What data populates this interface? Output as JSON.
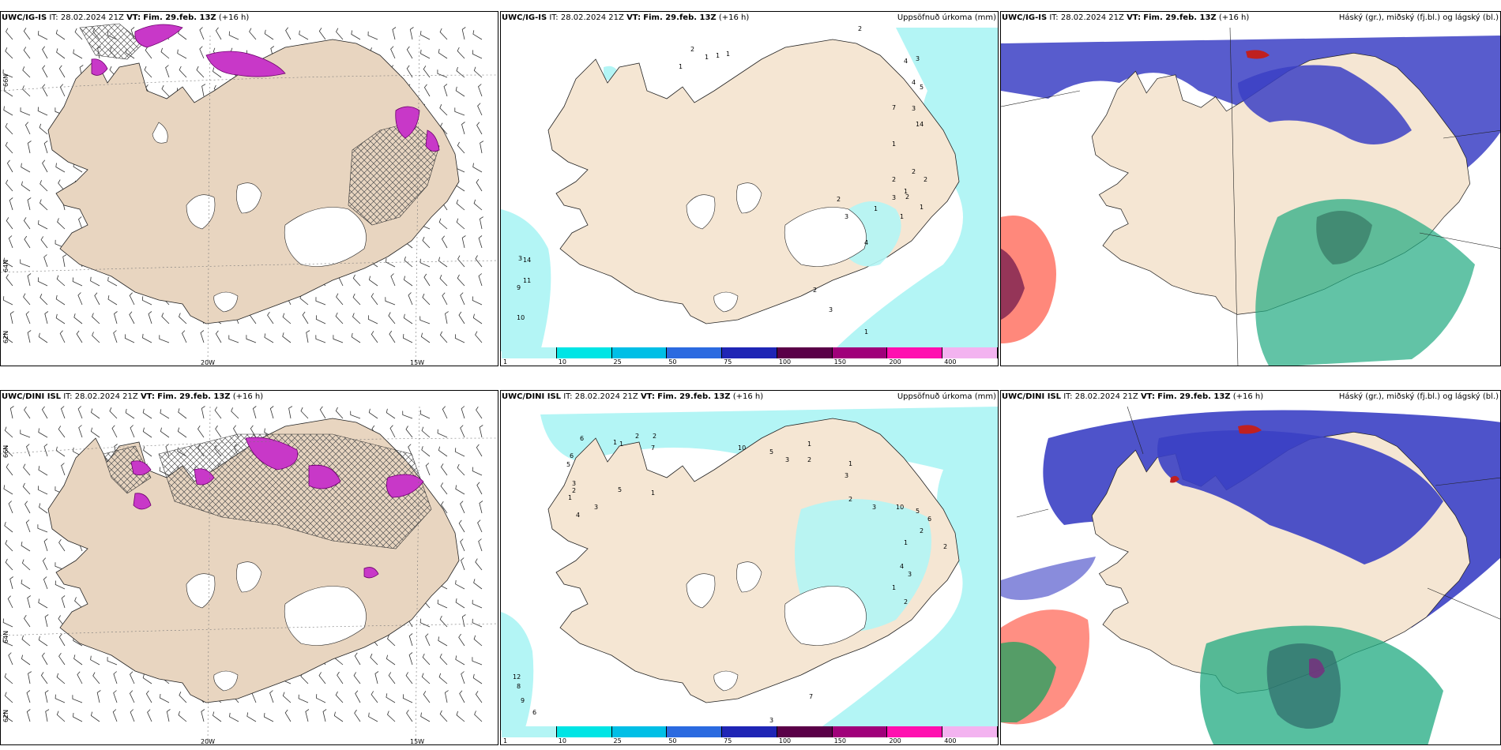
{
  "panels": [
    {
      "model": "UWC/IG-IS",
      "it_label": "IT:",
      "it": "28.02.2024 21Z",
      "vt_label": "VT:",
      "vt": "Fim. 29.feb. 13Z",
      "lead": "(+16 h)",
      "right": ""
    },
    {
      "model": "UWC/IG-IS",
      "it_label": "IT:",
      "it": "28.02.2024 21Z",
      "vt_label": "VT:",
      "vt": "Fim. 29.feb. 13Z",
      "lead": "(+16 h)",
      "right": "Uppsöfnuð úrkoma (mm)"
    },
    {
      "model": "UWC/IG-IS",
      "it_label": "IT:",
      "it": "28.02.2024 21Z",
      "vt_label": "VT:",
      "vt": "Fim. 29.feb. 13Z",
      "lead": "(+16 h)",
      "right": "Háský (gr.), miðský (fj.bl.) og lágský (bl.)"
    },
    {
      "model": "UWC/DINI ISL",
      "it_label": "IT:",
      "it": "28.02.2024 21Z",
      "vt_label": "VT:",
      "vt": "Fim. 29.feb. 13Z",
      "lead": "(+16 h)",
      "right": ""
    },
    {
      "model": "UWC/DINI ISL",
      "it_label": "IT:",
      "it": "28.02.2024 21Z",
      "vt_label": "VT:",
      "vt": "Fim. 29.feb. 13Z",
      "lead": "(+16 h)",
      "right": "Uppsöfnuð úrkoma (mm)"
    },
    {
      "model": "UWC/DINI ISL",
      "it_label": "IT:",
      "it": "28.02.2024 21Z",
      "vt_label": "VT:",
      "vt": "Fim. 29.feb. 13Z",
      "lead": "(+16 h)",
      "right": "Háský (gr.), miðský (fj.bl.) og lágský (bl.)"
    }
  ],
  "grid_labels": {
    "lon": [
      "20W",
      "15W"
    ],
    "lat": [
      "66N",
      "64N",
      "62N"
    ]
  },
  "colorbar": {
    "ticks": [
      "1",
      "10",
      "25",
      "50",
      "75",
      "100",
      "150",
      "200",
      "400"
    ],
    "colors": [
      "#b3f5f5",
      "#00e5e5",
      "#00bfe6",
      "#2b6ae0",
      "#1f25b5",
      "#5a0048",
      "#a0007a",
      "#ff10b0",
      "#f3b3f0"
    ]
  },
  "colors": {
    "land": "#f5e6d3",
    "land_wind": "#e8d5c0",
    "precip_light": "#b3f5f5",
    "cloud_high": "#f9ba7c",
    "cloud_mid": "#00b98a",
    "cloud_low": "#2a2fb8"
  },
  "precip_values_top": [
    "2",
    "1",
    "1",
    "1",
    "1",
    "2",
    "4",
    "3",
    "5",
    "4",
    "3",
    "7",
    "14",
    "1",
    "2",
    "2",
    "1",
    "2",
    "1",
    "3",
    "2",
    "1",
    "1",
    "2",
    "3",
    "4",
    "11",
    "9",
    "3",
    "14",
    "2",
    "3",
    "1",
    "10"
  ],
  "precip_values_bottom": [
    "6",
    "1",
    "2",
    "2",
    "1",
    "7",
    "6",
    "5",
    "3",
    "2",
    "1",
    "4",
    "3",
    "5",
    "1",
    "10",
    "5",
    "3",
    "2",
    "1",
    "1",
    "3",
    "2",
    "3",
    "10",
    "5",
    "6",
    "1",
    "2",
    "2",
    "4",
    "3",
    "1",
    "2",
    "12",
    "8",
    "9",
    "6",
    "7",
    "3"
  ]
}
